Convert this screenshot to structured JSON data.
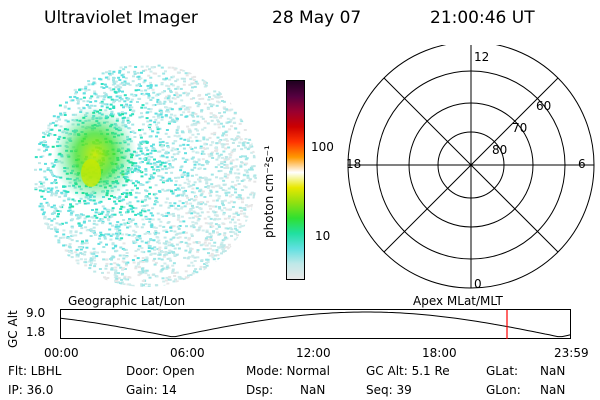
{
  "header": {
    "title": "Ultraviolet Imager",
    "date": "28 May 07",
    "time": "21:00:46 UT"
  },
  "colorbar": {
    "label": "photon cm⁻²s⁻¹",
    "ticks": [
      "100",
      "10"
    ],
    "colors": [
      "#e8e8e8",
      "#bfe8e8",
      "#60e0e0",
      "#20e0a0",
      "#30e030",
      "#90e010",
      "#e8e800",
      "#ffffff",
      "#ff9900",
      "#ff3300",
      "#cc0000",
      "#990030",
      "#550040",
      "#200020"
    ]
  },
  "polar": {
    "mlt_labels": {
      "top": "12",
      "bottom": "0",
      "left": "18",
      "right": "6"
    },
    "lat_labels": [
      "60",
      "70",
      "80"
    ]
  },
  "timeline": {
    "left_title": "Geographic Lat/Lon",
    "right_title": "Apex MLat/MLT",
    "y_axis_label": "GC Alt",
    "y_ticks": [
      "9.0",
      "1.8"
    ],
    "x_ticks": [
      "00:00",
      "06:00",
      "12:00",
      "18:00",
      "23:59"
    ],
    "marker_color": "#ff0000"
  },
  "info": {
    "flt": "Flt: LBHL",
    "door": "Door: Open",
    "mode": "Mode: Normal",
    "gc_alt": "GC Alt: 5.1 Re",
    "glat_label": "GLat:",
    "glat_value": "NaN",
    "ip": "IP: 36.0",
    "gain": "Gain: 14",
    "dsp_label": "Dsp:",
    "dsp_value": "NaN",
    "seq": "Seq: 39",
    "glon_label": "GLon:",
    "glon_value": "NaN"
  }
}
